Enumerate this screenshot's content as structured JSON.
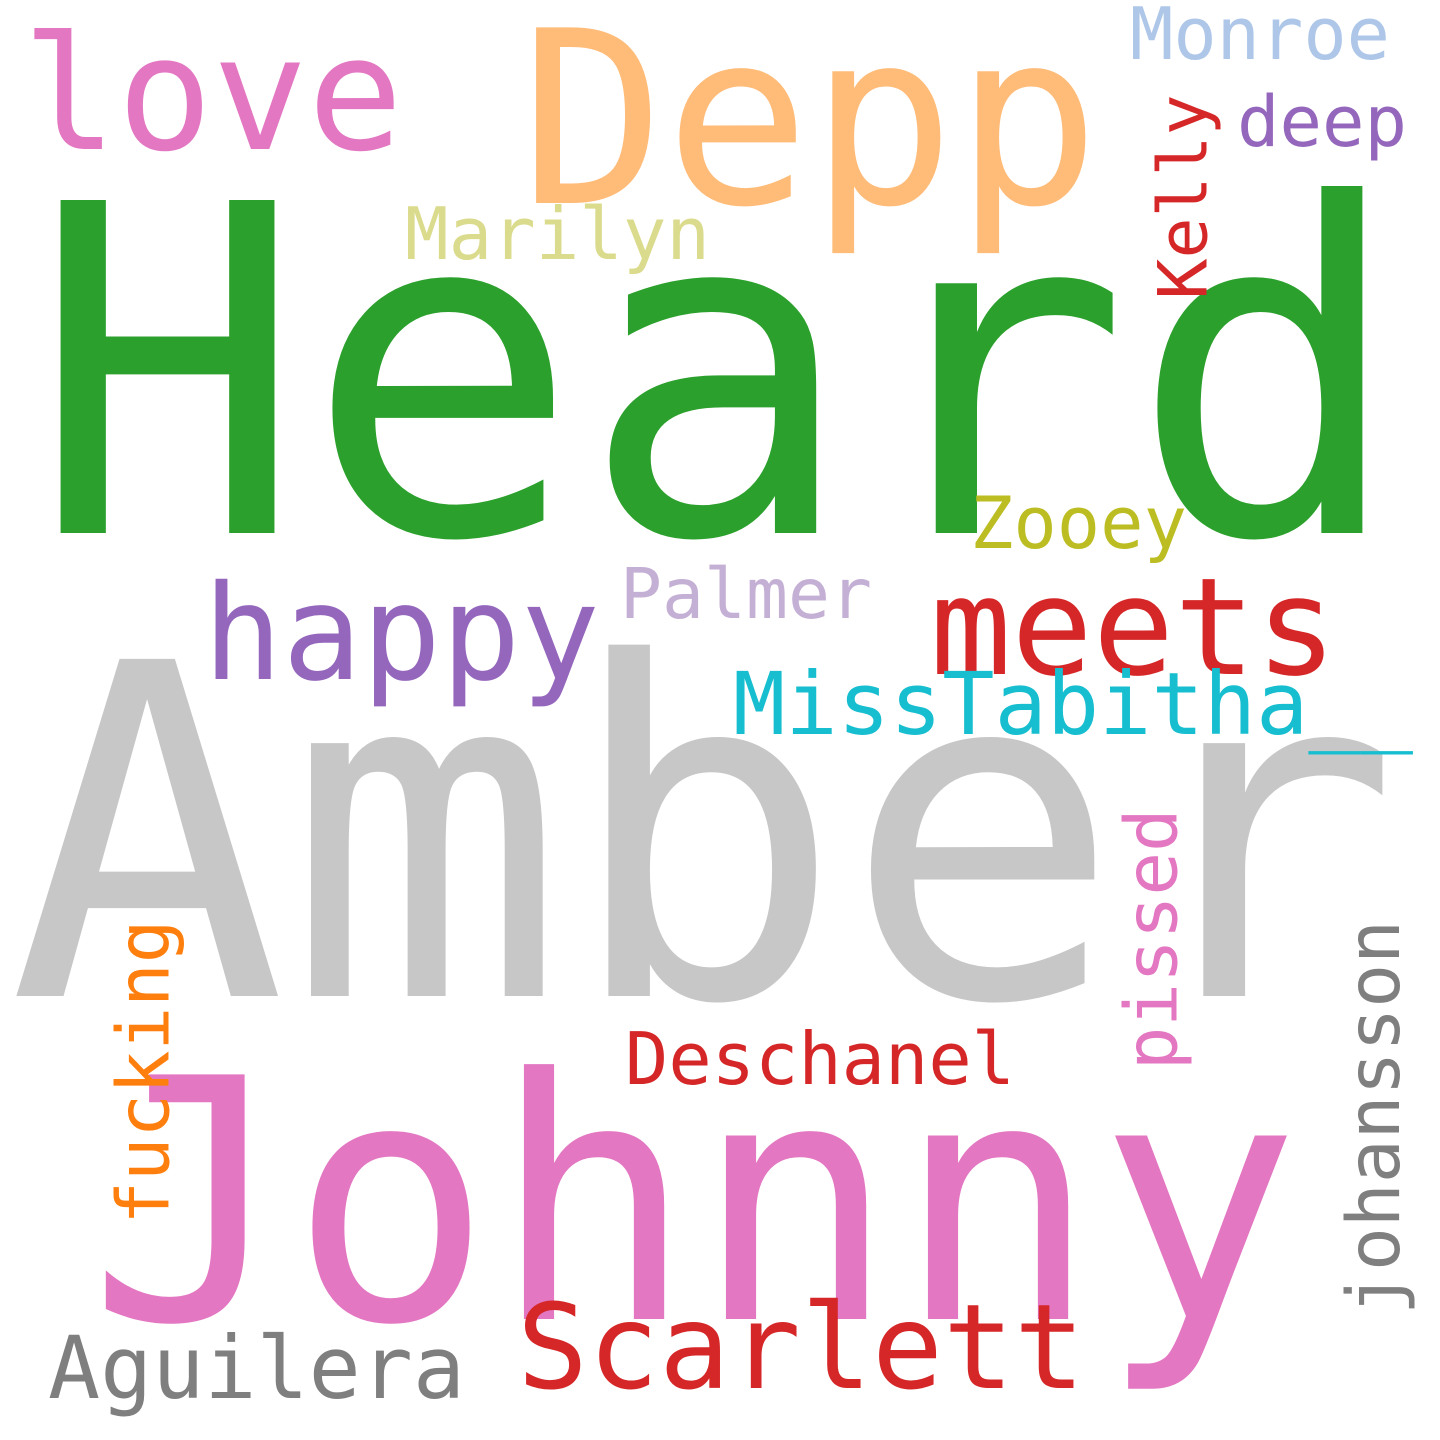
{
  "words": [
    {
      "text": "Heard",
      "color": "#2ca02c",
      "orientation": "horizontal"
    },
    {
      "text": "Amber",
      "color": "#c7c7c7",
      "orientation": "horizontal"
    },
    {
      "text": "Johnny",
      "color": "#e377c2",
      "orientation": "horizontal"
    },
    {
      "text": "Depp",
      "color": "#ffbb78",
      "orientation": "horizontal"
    },
    {
      "text": "love",
      "color": "#e377c2",
      "orientation": "horizontal"
    },
    {
      "text": "happy",
      "color": "#9467bd",
      "orientation": "horizontal"
    },
    {
      "text": "meets",
      "color": "#d62728",
      "orientation": "horizontal"
    },
    {
      "text": "Scarlett",
      "color": "#d62728",
      "orientation": "horizontal"
    },
    {
      "text": "MissTabitha__",
      "color": "#17becf",
      "orientation": "horizontal"
    },
    {
      "text": "Aguilera",
      "color": "#7f7f7f",
      "orientation": "horizontal"
    },
    {
      "text": "Deschanel",
      "color": "#d62728",
      "orientation": "horizontal"
    },
    {
      "text": "Marilyn",
      "color": "#dbdb8d",
      "orientation": "horizontal"
    },
    {
      "text": "Zooey",
      "color": "#bcbd22",
      "orientation": "horizontal"
    },
    {
      "text": "Palmer",
      "color": "#c5b0d5",
      "orientation": "horizontal"
    },
    {
      "text": "Monroe",
      "color": "#aec7e8",
      "orientation": "horizontal"
    },
    {
      "text": "deep",
      "color": "#9467bd",
      "orientation": "horizontal"
    },
    {
      "text": "Kelly",
      "color": "#d62728",
      "orientation": "vertical"
    },
    {
      "text": "fucking",
      "color": "#ff7f0e",
      "orientation": "vertical"
    },
    {
      "text": "pissed",
      "color": "#e377c2",
      "orientation": "vertical"
    },
    {
      "text": "johansson",
      "color": "#7f7f7f",
      "orientation": "vertical"
    }
  ]
}
